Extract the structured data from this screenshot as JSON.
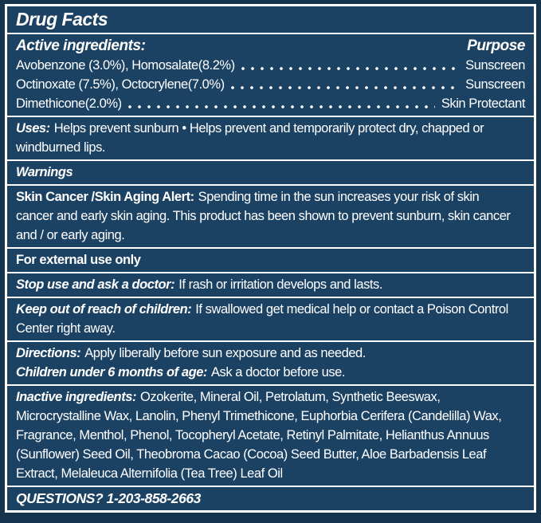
{
  "colors": {
    "panel_bg": "#1c4263",
    "outer_bg": "#16334d",
    "rule": "#ffffff",
    "text": "#ffffff"
  },
  "title": "Drug Facts",
  "active_section": {
    "heading": "Active ingredients:",
    "purpose_heading": "Purpose",
    "rows": [
      {
        "name": "Avobenzone (3.0%), Homosalate(8.2%)",
        "purpose": "Sunscreen"
      },
      {
        "name": "Octinoxate (7.5%), Octocrylene(7.0%)",
        "purpose": "Sunscreen"
      },
      {
        "name": "Dimethicone(2.0%)",
        "purpose": "Skin Protectant"
      }
    ]
  },
  "uses": {
    "label": "Uses:",
    "text": "Helps prevent sunburn • Helps prevent and temporarily protect dry, chapped or\nwindburned lips."
  },
  "warnings_heading": "Warnings",
  "alert": {
    "label": "Skin Cancer /Skin Aging Alert:",
    "text": "Spending time in the sun increases your risk of skin\ncancer and early skin aging. This product has been shown to prevent sunburn, skin cancer\nand / or early aging."
  },
  "external_use": "For external use only",
  "stop_use": {
    "label": "Stop use and ask a doctor:",
    "text": "If rash or irritation develops and lasts."
  },
  "keep_out": {
    "label": "Keep out of reach of children:",
    "text": "If swallowed get medical help or contact a Poison Control\nCenter right away."
  },
  "directions": {
    "label": "Directions:",
    "text": "Apply liberally before sun exposure and as needed."
  },
  "children": {
    "label": "Children under 6 months of age:",
    "text": "Ask a doctor before use."
  },
  "inactive": {
    "label": "Inactive ingredients:",
    "text": "Ozokerite, Mineral Oil, Petrolatum, Synthetic Beeswax,\nMicrocrystalline Wax, Lanolin, Phenyl Trimethicone, Euphorbia Cerifera (Candelilla) Wax,\nFragrance, Menthol, Phenol, Tocopheryl Acetate, Retinyl Palmitate, Helianthus Annuus\n(Sunflower) Seed Oil, Theobroma Cacao (Cocoa) Seed Butter, Aloe Barbadensis Leaf\nExtract, Melaleuca Alternifolia (Tea Tree) Leaf Oil"
  },
  "questions": "QUESTIONS? 1-203-858-2663"
}
